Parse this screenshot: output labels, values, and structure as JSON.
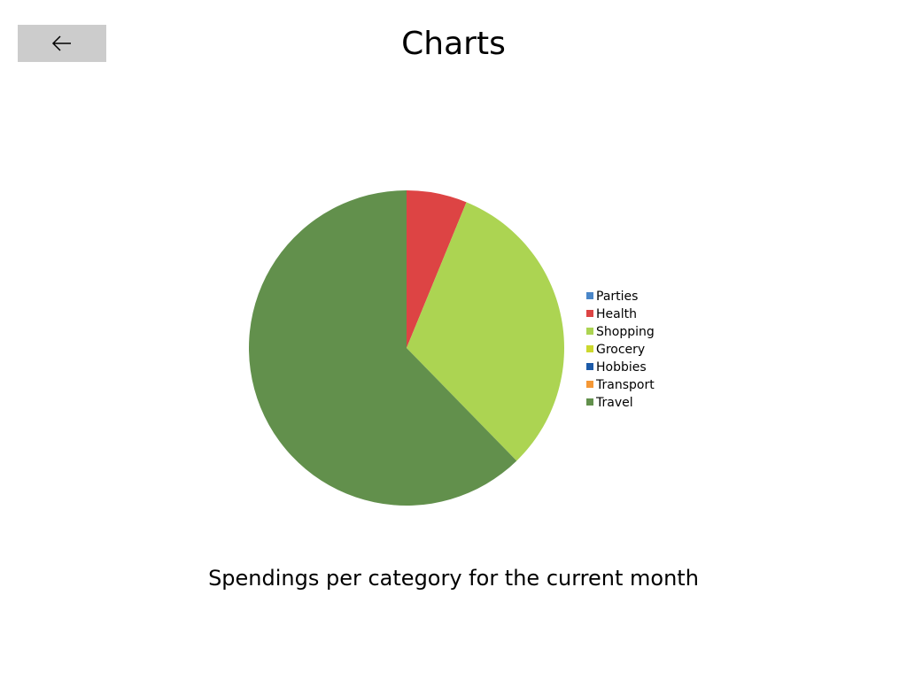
{
  "header": {
    "title": "Charts",
    "back_icon": "arrow-left-icon"
  },
  "caption": "Spendings per category for the current month",
  "chart_data": {
    "type": "pie",
    "title": "",
    "categories": [
      "Parties",
      "Health",
      "Shopping",
      "Grocery",
      "Hobbies",
      "Transport",
      "Travel"
    ],
    "values": [
      0,
      6.2,
      31.5,
      0,
      0,
      0,
      62.3
    ],
    "colors": [
      "#4a86c8",
      "#dd4444",
      "#acd452",
      "#ccd82e",
      "#1c5aa8",
      "#f59836",
      "#62904c"
    ],
    "legend": "right"
  }
}
